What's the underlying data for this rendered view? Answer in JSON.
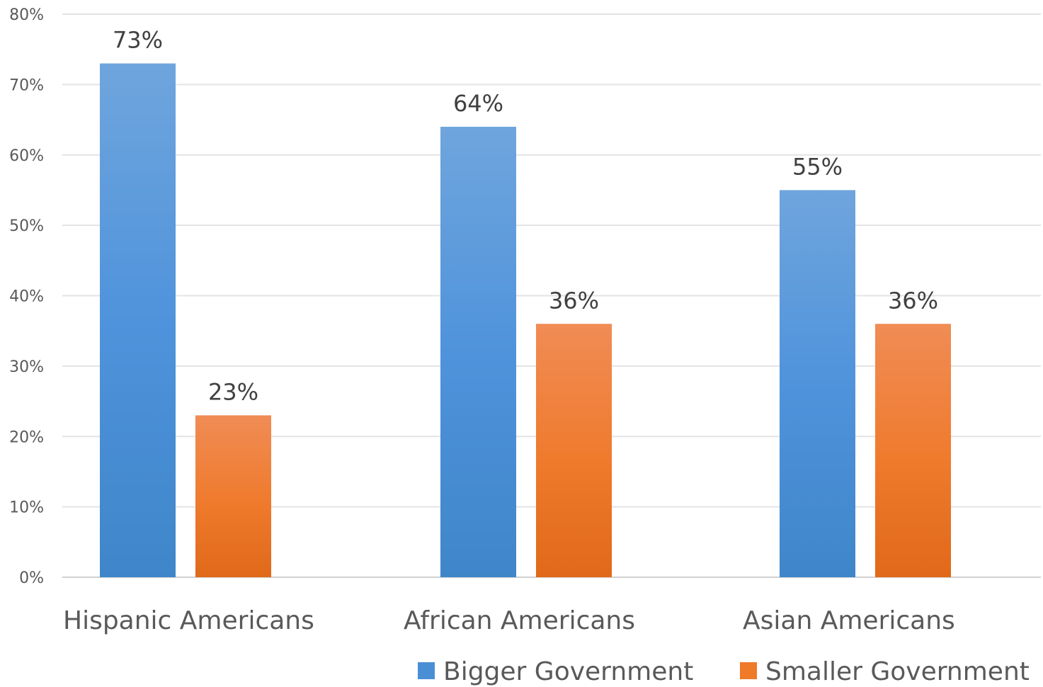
{
  "chart_data": {
    "type": "bar",
    "title": "",
    "xlabel": "",
    "ylabel": "",
    "categories": [
      "Hispanic Americans",
      "African Americans",
      "Asian Americans"
    ],
    "series": [
      {
        "name": "Bigger Government",
        "values": [
          73,
          64,
          55
        ],
        "labels": [
          "73%",
          "64%",
          "55%"
        ],
        "color": "#4a8fd6"
      },
      {
        "name": "Smaller Government",
        "values": [
          23,
          36,
          36
        ],
        "labels": [
          "23%",
          "36%",
          "36%"
        ],
        "color": "#ee7a2a"
      }
    ],
    "ylim": [
      0,
      80
    ],
    "yticks": [
      0,
      10,
      20,
      30,
      40,
      50,
      60,
      70,
      80
    ],
    "ytick_labels": [
      "0%",
      "10%",
      "20%",
      "30%",
      "40%",
      "50%",
      "60%",
      "70%",
      "80%"
    ],
    "grid": true,
    "legend_position": "bottom-right"
  }
}
